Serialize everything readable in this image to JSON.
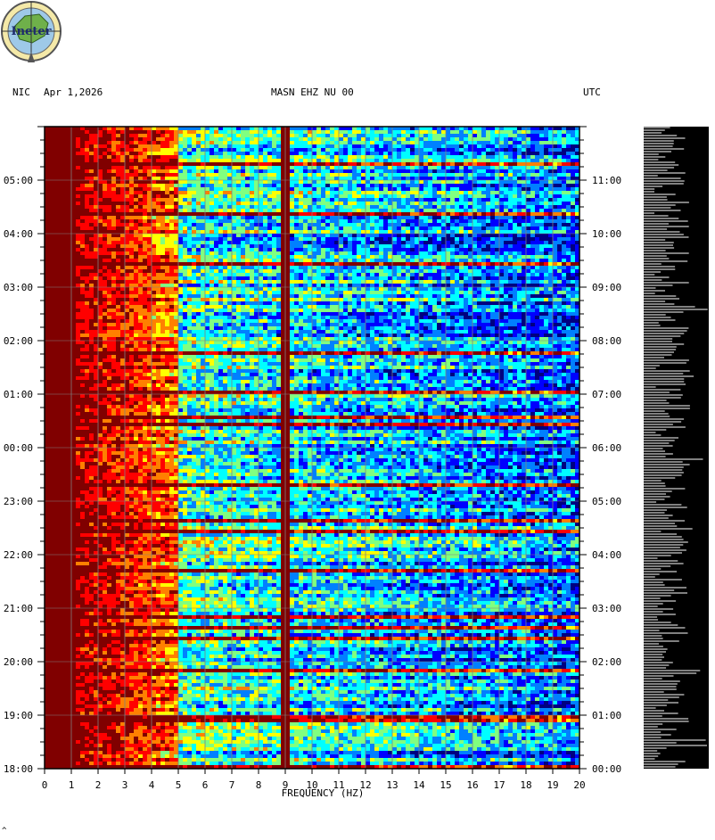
{
  "header": {
    "left": "NIC",
    "date": "Apr 1,2026",
    "station": "MASN EHZ NU 00",
    "right": "UTC"
  },
  "logo": {
    "text": "Ineter"
  },
  "footer": {
    "mark": "^"
  },
  "colors": {
    "palette": [
      "#000080",
      "#0000ff",
      "#0080ff",
      "#00ffff",
      "#80ff80",
      "#ffff00",
      "#ff8000",
      "#ff0000",
      "#800000"
    ],
    "waveform_bg": "#000000",
    "waveform_trace": "#ffffff"
  },
  "chart_data": {
    "type": "heatmap",
    "title": "MASN EHZ NU 00",
    "xlabel": "FREQUENCY (HZ)",
    "xlim": [
      0,
      20
    ],
    "x_ticks": [
      "0",
      "1",
      "2",
      "3",
      "4",
      "5",
      "6",
      "7",
      "8",
      "9",
      "10",
      "11",
      "12",
      "13",
      "14",
      "15",
      "16",
      "17",
      "18",
      "19",
      "20"
    ],
    "left_time_ticks": [
      "18:00",
      "19:00",
      "20:00",
      "21:00",
      "22:00",
      "23:00",
      "00:00",
      "01:00",
      "02:00",
      "03:00",
      "04:00",
      "05:00"
    ],
    "right_time_ticks": [
      "00:00",
      "01:00",
      "02:00",
      "03:00",
      "04:00",
      "05:00",
      "06:00",
      "07:00",
      "08:00",
      "09:00",
      "10:00",
      "11:00"
    ],
    "time_span_hours": [
      0,
      12
    ],
    "features": {
      "low_frequency_band_hz": [
        0,
        5
      ],
      "persistent_line_hz": 9
    },
    "grid": true
  }
}
